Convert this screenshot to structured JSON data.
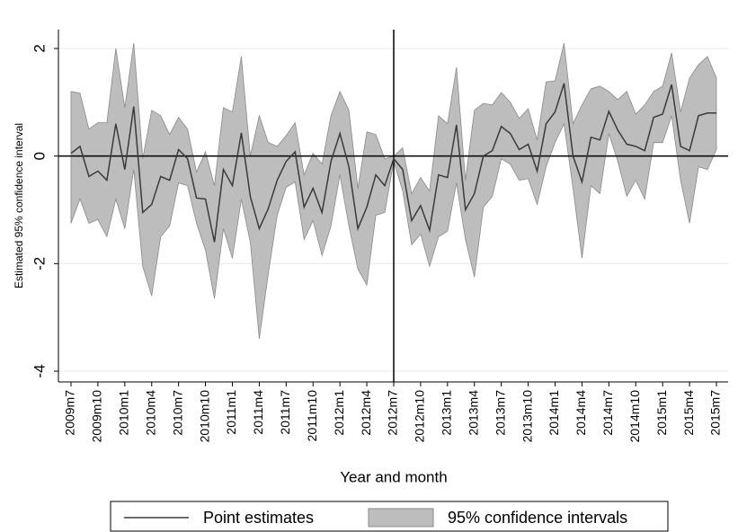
{
  "chart_data": {
    "type": "line-band",
    "y_label": "Estimated 95% confidence interval",
    "x_label": "Year and month",
    "categories": [
      "2009m7",
      null,
      null,
      "2009m10",
      null,
      null,
      "2010m1",
      null,
      null,
      "2010m4",
      null,
      null,
      "2010m7",
      null,
      null,
      "2010m10",
      null,
      null,
      "2011m1",
      null,
      null,
      "2011m4",
      null,
      null,
      "2011m7",
      null,
      null,
      "2011m10",
      null,
      null,
      "2012m1",
      null,
      null,
      "2012m4",
      null,
      null,
      "2012m7",
      null,
      null,
      "2012m10",
      null,
      null,
      "2013m1",
      null,
      null,
      "2013m4",
      null,
      null,
      "2013m7",
      null,
      null,
      "2013m10",
      null,
      null,
      "2014m1",
      null,
      null,
      "2014m4",
      null,
      null,
      "2014m7",
      null,
      null,
      "2014m10",
      null,
      null,
      "2015m1",
      null,
      null,
      "2015m4",
      null,
      null,
      "2015m7"
    ],
    "series": [
      {
        "name": "Point estimates",
        "color": "#3a3a3a",
        "values": [
          0.05,
          0.18,
          -0.38,
          -0.28,
          -0.45,
          0.6,
          -0.25,
          0.92,
          -1.05,
          -0.9,
          -0.38,
          -0.45,
          0.12,
          -0.05,
          -0.78,
          -0.8,
          -1.6,
          -0.25,
          -0.55,
          0.43,
          -0.75,
          -1.35,
          -0.98,
          -0.45,
          -0.1,
          0.08,
          -0.95,
          -0.6,
          -1.05,
          -0.1,
          0.42,
          -0.2,
          -1.35,
          -0.95,
          -0.35,
          -0.55,
          -0.05,
          -0.25,
          -1.2,
          -0.92,
          -1.38,
          -0.35,
          -0.4,
          0.58,
          -1.0,
          -0.7,
          0.0,
          0.1,
          0.55,
          0.42,
          0.12,
          0.22,
          -0.28,
          0.6,
          0.82,
          1.35,
          0.0,
          -0.48,
          0.35,
          0.3,
          0.83,
          0.48,
          0.22,
          0.18,
          0.1,
          0.72,
          0.78,
          1.33,
          0.18,
          0.1,
          0.75,
          0.8,
          0.8
        ]
      }
    ],
    "band": {
      "name": "95% confidence intervals",
      "color": "#bdbdbd",
      "upper": [
        1.2,
        1.17,
        0.5,
        0.62,
        0.62,
        2.0,
        0.9,
        2.1,
        -0.05,
        0.85,
        0.75,
        0.4,
        0.72,
        0.5,
        -0.3,
        0.08,
        -0.55,
        0.9,
        0.82,
        1.85,
        0.0,
        0.75,
        0.25,
        0.18,
        0.38,
        0.62,
        -0.35,
        0.05,
        -0.15,
        0.75,
        1.2,
        0.85,
        -0.6,
        0.45,
        0.4,
        -0.05,
        0.0,
        0.15,
        -0.7,
        -0.4,
        -0.65,
        0.75,
        0.6,
        1.65,
        -0.45,
        0.85,
        0.98,
        0.95,
        1.18,
        1.0,
        0.7,
        0.88,
        0.3,
        1.38,
        1.4,
        2.1,
        0.6,
        0.95,
        1.25,
        1.3,
        1.2,
        1.05,
        1.2,
        0.78,
        0.95,
        1.2,
        1.3,
        1.92,
        0.82,
        1.45,
        1.7,
        1.85,
        1.45
      ],
      "lower": [
        -1.25,
        -0.8,
        -1.25,
        -1.18,
        -1.5,
        -0.8,
        -1.35,
        -0.25,
        -2.05,
        -2.6,
        -1.5,
        -1.3,
        -0.5,
        -0.55,
        -1.25,
        -1.75,
        -2.65,
        -1.35,
        -1.9,
        -0.8,
        -1.6,
        -3.4,
        -2.2,
        -1.1,
        -0.58,
        -0.48,
        -1.55,
        -1.2,
        -1.85,
        -1.3,
        -0.35,
        -1.3,
        -2.1,
        -2.4,
        -1.1,
        -1.05,
        -0.1,
        -0.65,
        -1.65,
        -1.45,
        -2.05,
        -1.5,
        -1.4,
        -0.5,
        -1.55,
        -2.25,
        -0.95,
        -0.75,
        -0.05,
        -0.15,
        -0.45,
        -0.42,
        -0.9,
        -0.2,
        0.25,
        0.6,
        -0.6,
        -1.9,
        -0.55,
        -0.7,
        0.42,
        -0.1,
        -0.75,
        -0.45,
        -0.8,
        0.25,
        0.25,
        0.75,
        -0.45,
        -1.25,
        -0.2,
        -0.25,
        0.12
      ]
    },
    "ylim": [
      -4.2,
      2.35
    ],
    "yticks": [
      -4,
      -2,
      0,
      2
    ],
    "grid": true,
    "yline": 0,
    "xline": "2012m7",
    "legend": "bottom"
  }
}
